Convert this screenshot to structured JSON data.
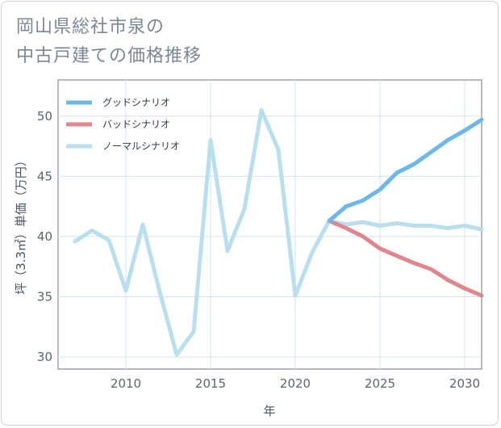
{
  "title_line1": "岡山県総社市泉の",
  "title_line2": "中古戸建ての価格推移",
  "chart_data": {
    "type": "line",
    "xlabel": "年",
    "ylabel": "坪（3.3㎡）単価（万円）",
    "xlim": [
      2006,
      2031
    ],
    "ylim": [
      29,
      53
    ],
    "xticks": [
      2010,
      2015,
      2020,
      2025,
      2030
    ],
    "yticks": [
      30,
      35,
      40,
      45,
      50
    ],
    "legend_position": "top-left",
    "series": [
      {
        "name": "グッドシナリオ",
        "color": "#6cb8ea",
        "x": [
          2022,
          2023,
          2024,
          2025,
          2026,
          2027,
          2028,
          2029,
          2030,
          2031
        ],
        "values": [
          41.3,
          42.5,
          43.0,
          43.9,
          45.3,
          46.0,
          47.0,
          48.0,
          48.8,
          49.7
        ]
      },
      {
        "name": "バッドシナリオ",
        "color": "#e0868e",
        "x": [
          2022,
          2023,
          2024,
          2025,
          2026,
          2027,
          2028,
          2029,
          2030,
          2031
        ],
        "values": [
          41.3,
          40.7,
          40.0,
          39.0,
          38.4,
          37.8,
          37.3,
          36.4,
          35.7,
          35.1
        ]
      },
      {
        "name": "ノーマルシナリオ",
        "color": "#b9dfef",
        "x": [
          2007,
          2008,
          2009,
          2010,
          2011,
          2012,
          2013,
          2014,
          2015,
          2016,
          2017,
          2018,
          2019,
          2020,
          2021,
          2022,
          2023,
          2024,
          2025,
          2026,
          2027,
          2028,
          2029,
          2030,
          2031
        ],
        "values": [
          39.6,
          40.5,
          39.7,
          35.5,
          41.0,
          35.4,
          30.2,
          32.1,
          48.0,
          38.8,
          42.3,
          50.5,
          47.2,
          35.1,
          38.7,
          41.3,
          41.0,
          41.2,
          40.9,
          41.1,
          40.9,
          40.9,
          40.7,
          40.9,
          40.6
        ]
      }
    ]
  }
}
